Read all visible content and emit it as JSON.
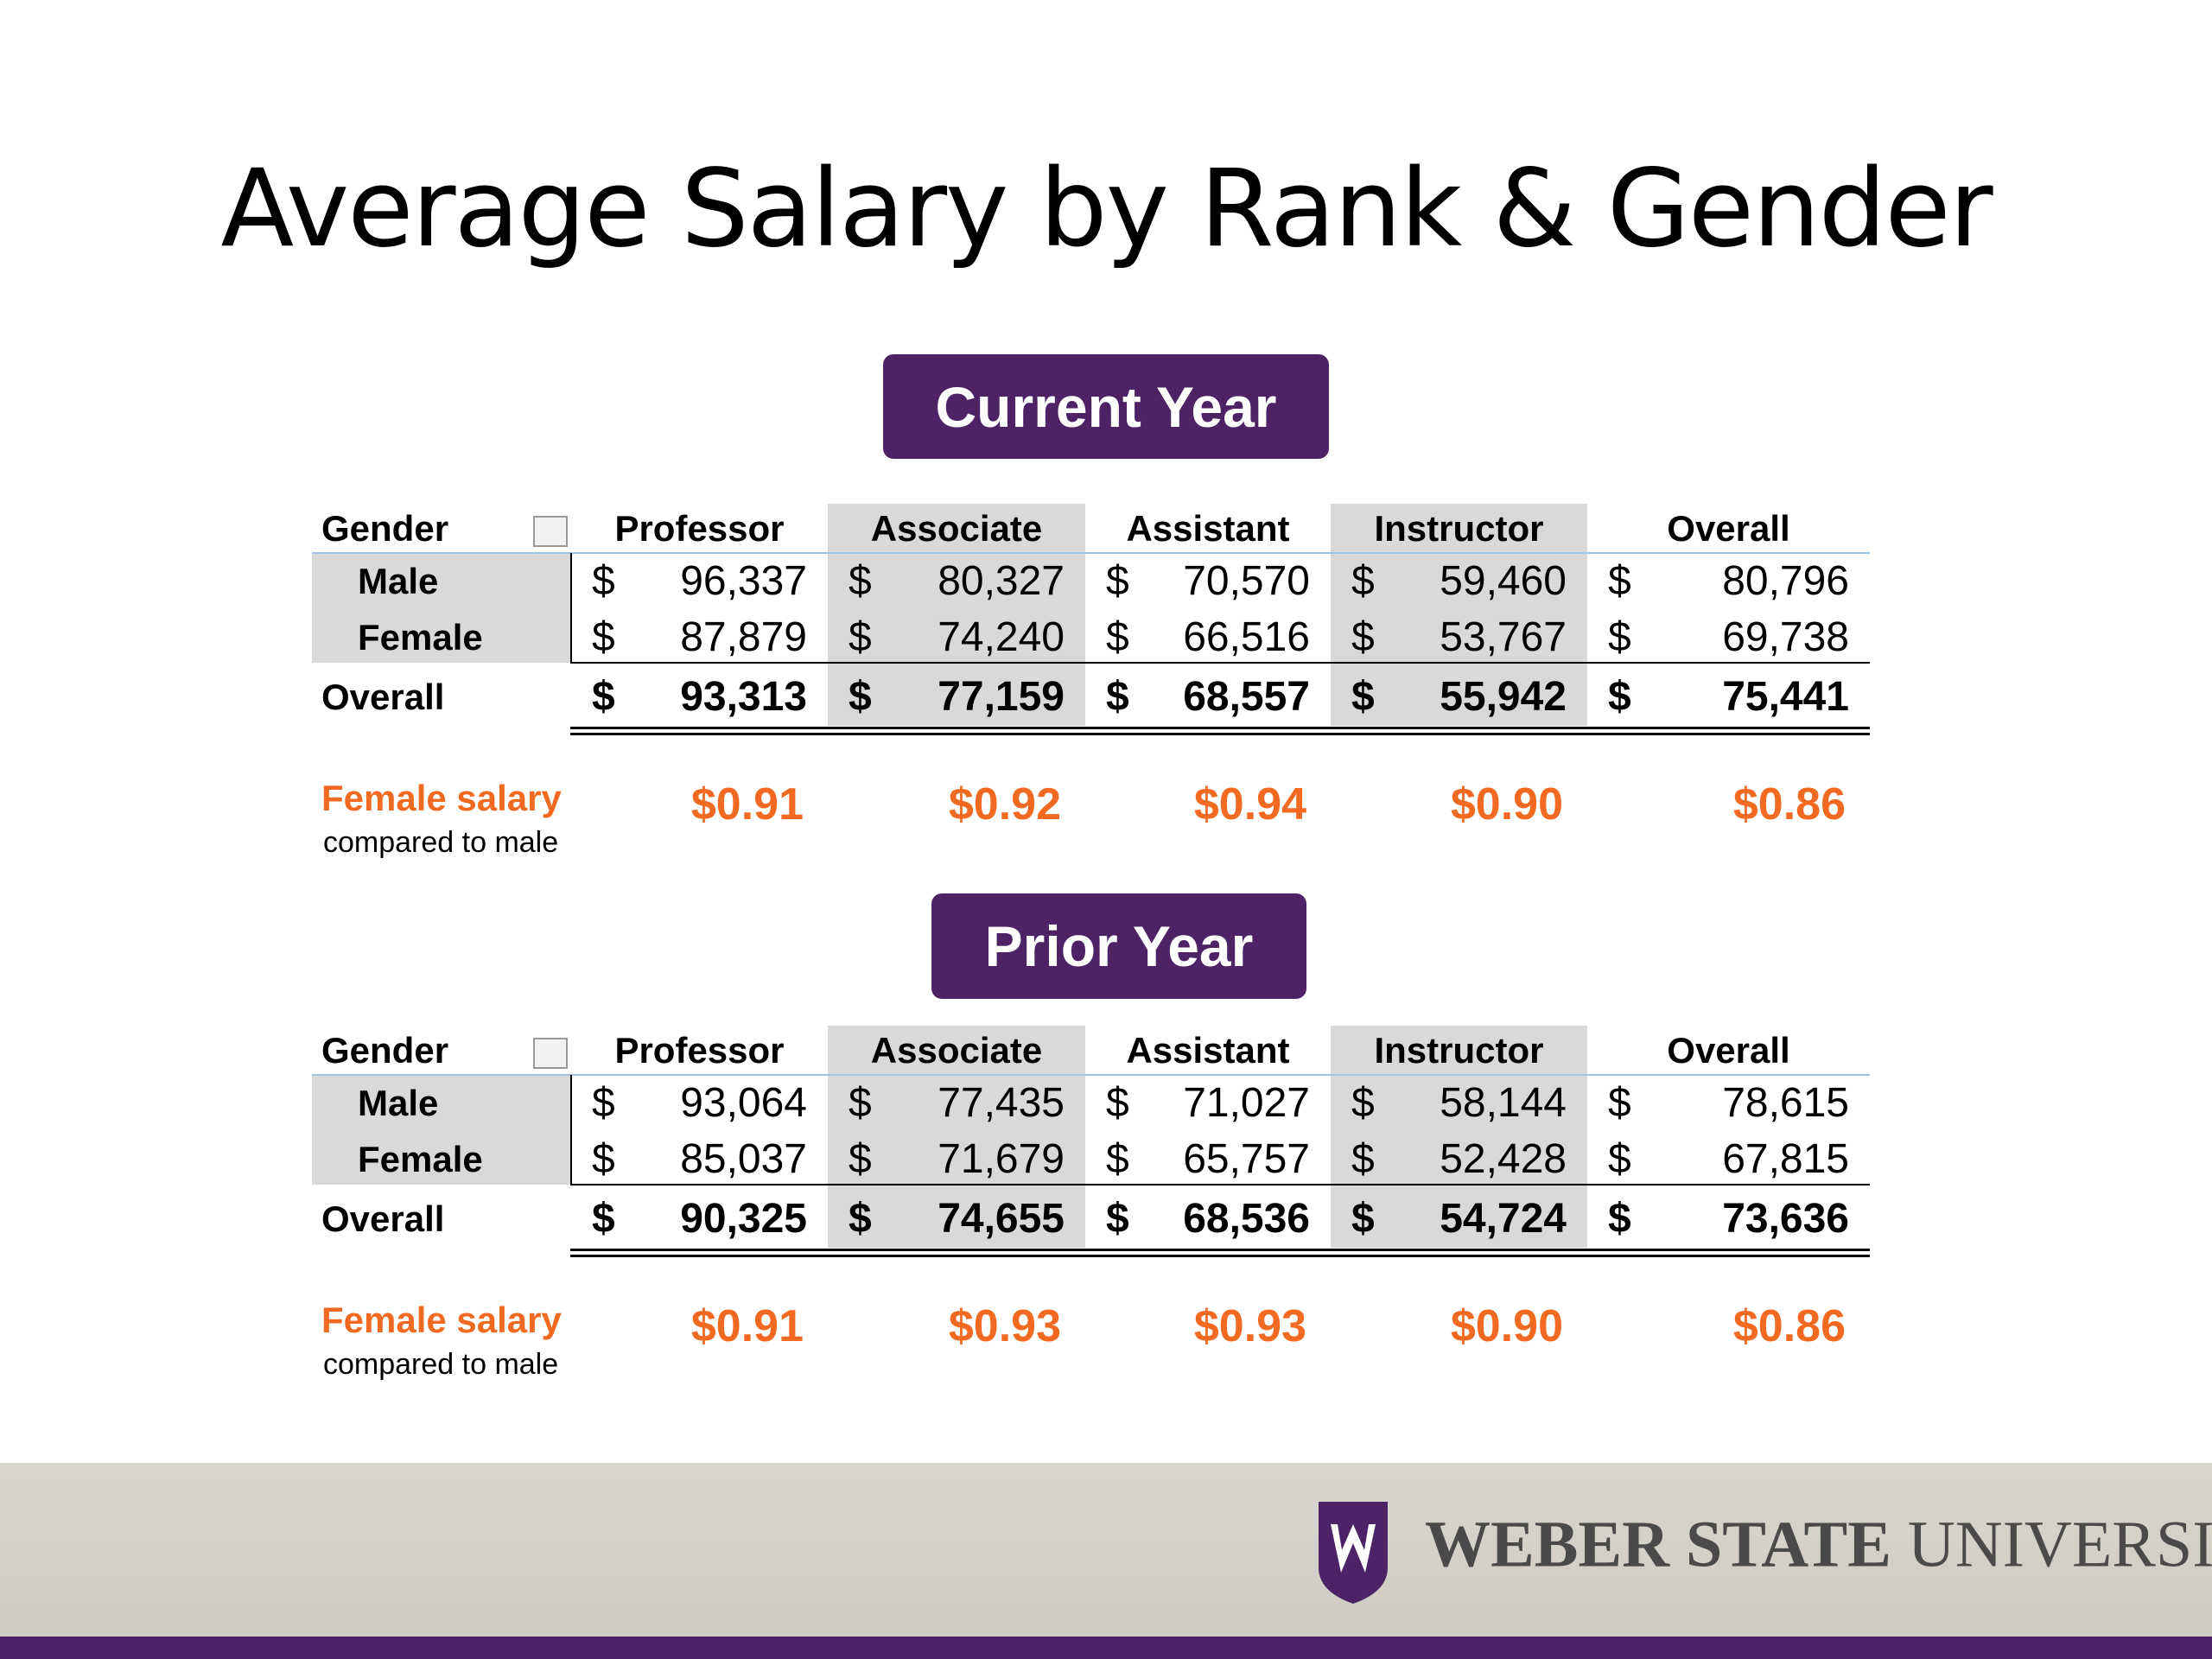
{
  "title": "Average Salary by Rank & Gender",
  "currency": "$",
  "sections": [
    {
      "heading": "Current Year",
      "row_header": "Gender",
      "columns": [
        "Professor",
        "Associate",
        "Assistant",
        "Instructor",
        "Overall"
      ],
      "rows": [
        {
          "label": "Male",
          "values": [
            "96,337",
            "80,327",
            "70,570",
            "59,460",
            "80,796"
          ]
        },
        {
          "label": "Female",
          "values": [
            "87,879",
            "74,240",
            "66,516",
            "53,767",
            "69,738"
          ]
        },
        {
          "label": "Overall",
          "values": [
            "93,313",
            "77,159",
            "68,557",
            "55,942",
            "75,441"
          ]
        }
      ],
      "ratio_label": "Female salary",
      "ratio_sublabel": "compared to male",
      "ratios": [
        "$0.91",
        "$0.92",
        "$0.94",
        "$0.90",
        "$0.86"
      ]
    },
    {
      "heading": "Prior Year",
      "row_header": "Gender",
      "columns": [
        "Professor",
        "Associate",
        "Assistant",
        "Instructor",
        "Overall"
      ],
      "rows": [
        {
          "label": "Male",
          "values": [
            "93,064",
            "77,435",
            "71,027",
            "58,144",
            "78,615"
          ]
        },
        {
          "label": "Female",
          "values": [
            "85,037",
            "71,679",
            "65,757",
            "52,428",
            "67,815"
          ]
        },
        {
          "label": "Overall",
          "values": [
            "90,325",
            "74,655",
            "68,536",
            "54,724",
            "73,636"
          ]
        }
      ],
      "ratio_label": "Female salary",
      "ratio_sublabel": "compared to male",
      "ratios": [
        "$0.91",
        "$0.93",
        "$0.93",
        "$0.90",
        "$0.86"
      ]
    }
  ],
  "footer": {
    "logo_bold": "WEBER STATE",
    "logo_regular": "UNIVERSITY"
  }
}
